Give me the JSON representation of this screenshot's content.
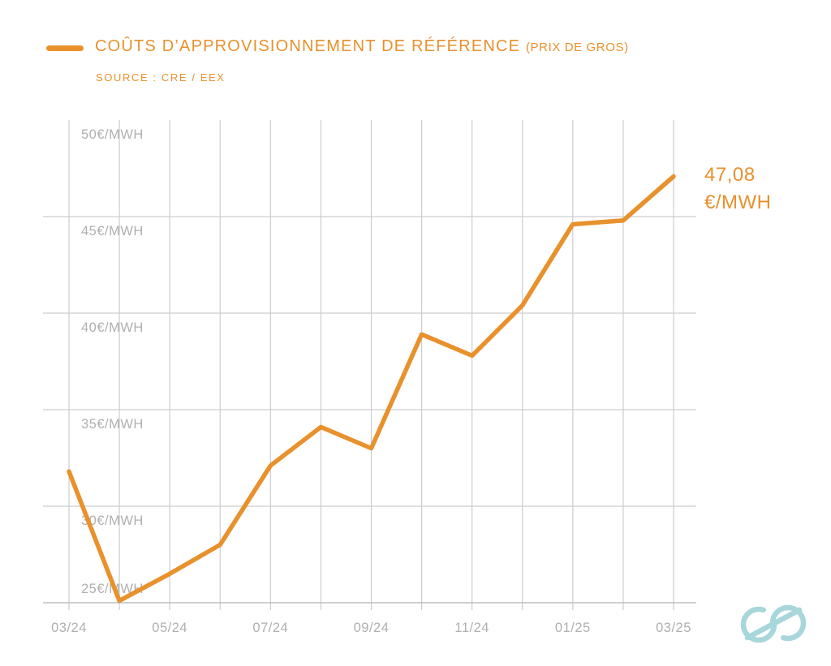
{
  "header": {
    "title": "COÛTS D’APPROVISIONNEMENT DE RÉFÉRENCE ",
    "title_suffix": "(PRIX DE GROS)",
    "source": "SOURCE : CRE / EEX"
  },
  "end_label": {
    "value": "47,08",
    "unit": "€/MWH"
  },
  "colors": {
    "accent_orange": "#E8912D",
    "grid_gray": "#CDCDCD",
    "axis_gray": "#BFBFBF",
    "label_gray": "#B0B0B0",
    "logo_teal": "#A7D6DB",
    "background": "#FFFFFF"
  },
  "chart_data": {
    "type": "line",
    "title": "COÛTS D’APPROVISIONNEMENT DE RÉFÉRENCE (PRIX DE GROS)",
    "source": "SOURCE : CRE / EEX",
    "x": [
      "03/24",
      "04/24",
      "05/24",
      "06/24",
      "07/24",
      "08/24",
      "09/24",
      "10/24",
      "11/24",
      "12/24",
      "01/25",
      "02/25",
      "03/25"
    ],
    "values": [
      31.8,
      25.1,
      26.5,
      28.0,
      32.1,
      34.1,
      33.0,
      38.9,
      37.8,
      40.4,
      44.6,
      44.8,
      47.08
    ],
    "x_tick_labels": [
      "03/24",
      "05/24",
      "07/24",
      "09/24",
      "11/24",
      "01/25",
      "03/25"
    ],
    "y_tick_values": [
      50,
      45,
      40,
      35,
      30,
      25
    ],
    "y_tick_labels": [
      "50€/MWH",
      "45€/MWH",
      "40€/MWH",
      "35€/MWH",
      "30€/MWH",
      "25€/MWH"
    ],
    "ylim": [
      25,
      50
    ],
    "grid": true,
    "legend_position": "top-left",
    "series_name": "Coûts d’approvisionnement de référence (prix de gros)",
    "last_point_label": "47,08 €/MWH"
  }
}
